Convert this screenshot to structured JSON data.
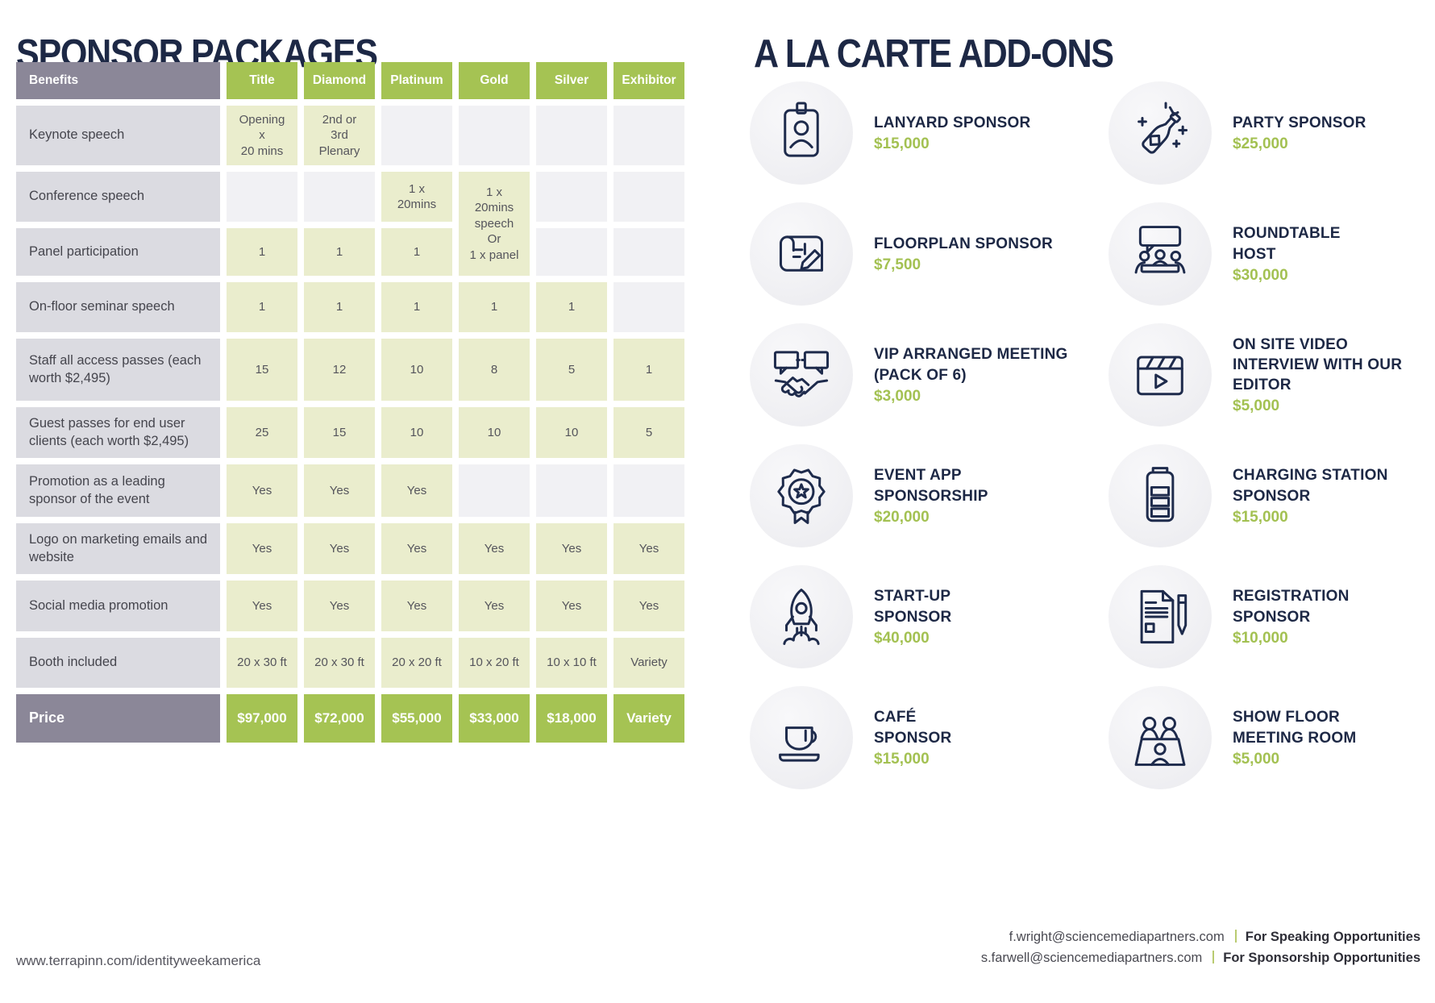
{
  "titles": {
    "left": "SPONSOR PACKAGES",
    "right": "A LA CARTE ADD-ONS"
  },
  "colors": {
    "navy_text": "#1d2845",
    "accent_green": "#a5c353",
    "light_green_cell": "#eaedcd",
    "grey_header": "#8b8798",
    "grey_label_cell": "#dbdbe1",
    "grey_empty_cell": "#f1f1f4",
    "price_text_green": "#a3c152"
  },
  "table": {
    "columns": [
      "Benefits",
      "Title",
      "Diamond",
      "Platinum",
      "Gold",
      "Silver",
      "Exhibitor"
    ],
    "rows": [
      {
        "benefit": "Keynote speech",
        "cells": [
          "Opening\nx\n20 mins",
          "2nd or\n3rd\nPlenary",
          "",
          "",
          "",
          ""
        ]
      },
      {
        "benefit": "Conference speech",
        "cells": [
          "",
          "",
          "1 x\n20mins",
          {
            "text": "1 x\n20mins\nspeech\nOr\n1 x panel",
            "rowspan": 2
          },
          "",
          ""
        ]
      },
      {
        "benefit": "Panel participation",
        "cells": [
          "1",
          "1",
          "1",
          null,
          "",
          ""
        ]
      },
      {
        "benefit": "On-floor seminar speech",
        "cells": [
          "1",
          "1",
          "1",
          "1",
          "1",
          ""
        ]
      },
      {
        "benefit": "Staff all access passes (each worth $2,495)",
        "cells": [
          "15",
          "12",
          "10",
          "8",
          "5",
          "1"
        ]
      },
      {
        "benefit": "Guest passes for end user clients (each worth $2,495)",
        "cells": [
          "25",
          "15",
          "10",
          "10",
          "10",
          "5"
        ]
      },
      {
        "benefit": "Promotion as a leading sponsor of the event",
        "cells": [
          "Yes",
          "Yes",
          "Yes",
          "",
          "",
          ""
        ]
      },
      {
        "benefit": "Logo on marketing emails and website",
        "cells": [
          "Yes",
          "Yes",
          "Yes",
          "Yes",
          "Yes",
          "Yes"
        ]
      },
      {
        "benefit": "Social media promotion",
        "cells": [
          "Yes",
          "Yes",
          "Yes",
          "Yes",
          "Yes",
          "Yes"
        ]
      },
      {
        "benefit": "Booth included",
        "cells": [
          "20 x 30 ft",
          "20 x 30 ft",
          "20 x 20 ft",
          "10 x 20 ft",
          "10 x 10 ft",
          "Variety"
        ]
      }
    ],
    "price_row": {
      "label": "Price",
      "cells": [
        "$97,000",
        "$72,000",
        "$55,000",
        "$33,000",
        "$18,000",
        "Variety"
      ]
    }
  },
  "addons": {
    "left": [
      {
        "icon": "badge-icon",
        "title": [
          "LANYARD SPONSOR"
        ],
        "price": "$15,000"
      },
      {
        "icon": "floorplan-icon",
        "title": [
          "FLOORPLAN SPONSOR"
        ],
        "price": "$7,500"
      },
      {
        "icon": "handshake-icon",
        "title": [
          "VIP ARRANGED MEETING",
          "(PACK OF 6)"
        ],
        "price": "$3,000"
      },
      {
        "icon": "rosette-icon",
        "title": [
          "EVENT APP",
          "SPONSORSHIP"
        ],
        "price": "$20,000"
      },
      {
        "icon": "rocket-icon",
        "title": [
          "START-UP",
          "SPONSOR"
        ],
        "price": "$40,000"
      },
      {
        "icon": "coffee-icon",
        "title": [
          "CAFÉ",
          "SPONSOR"
        ],
        "price": "$15,000"
      }
    ],
    "right": [
      {
        "icon": "champagne-icon",
        "title": [
          "PARTY SPONSOR"
        ],
        "price": "$25,000"
      },
      {
        "icon": "roundtable-icon",
        "title": [
          "ROUNDTABLE",
          "HOST"
        ],
        "price": "$30,000"
      },
      {
        "icon": "video-icon",
        "title": [
          "ON SITE VIDEO",
          "INTERVIEW WITH OUR",
          "EDITOR"
        ],
        "price": "$5,000"
      },
      {
        "icon": "battery-icon",
        "title": [
          "CHARGING STATION",
          "SPONSOR"
        ],
        "price": "$15,000"
      },
      {
        "icon": "document-pen-icon",
        "title": [
          "REGISTRATION SPONSOR"
        ],
        "price": "$10,000"
      },
      {
        "icon": "meeting-room-icon",
        "title": [
          "SHOW FLOOR",
          "MEETING ROOM"
        ],
        "price": "$5,000"
      }
    ]
  },
  "footer": {
    "website": "www.terrapinn.com/identityweekamerica",
    "contacts": [
      {
        "email": "f.wright@sciencemediapartners.com",
        "label": "For Speaking Opportunities"
      },
      {
        "email": "s.farwell@sciencemediapartners.com",
        "label": "For Sponsorship Opportunities"
      }
    ]
  }
}
